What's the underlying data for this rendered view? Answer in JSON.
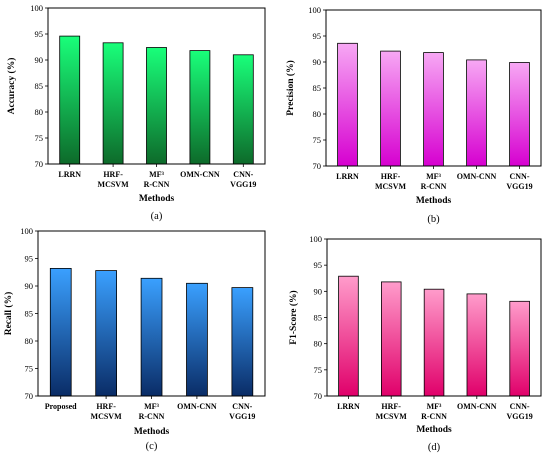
{
  "chart_data": [
    {
      "type": "bar",
      "caption": "(a)",
      "xlabel": "Methods",
      "ylabel": "Accuracy (%)",
      "ylim": [
        70,
        100
      ],
      "yticks": [
        70,
        75,
        80,
        85,
        90,
        95,
        100
      ],
      "categories": [
        [
          "LRRN"
        ],
        [
          "HRF-",
          "MCSVM"
        ],
        [
          "MF³",
          "R-CNN"
        ],
        [
          "OMN-CNN"
        ],
        [
          "CNN-",
          "VGG19"
        ]
      ],
      "values": [
        94.6,
        93.3,
        92.4,
        91.8,
        91.0
      ],
      "colors": {
        "top": "#19ff7a",
        "bottom": "#0d6a2a"
      },
      "grid": false
    },
    {
      "type": "bar",
      "caption": "(b)",
      "xlabel": "Methods",
      "ylabel": "Precision (%)",
      "ylim": [
        70,
        100
      ],
      "yticks": [
        70,
        75,
        80,
        85,
        90,
        95,
        100
      ],
      "categories": [
        [
          "LRRN"
        ],
        [
          "HRF-",
          "MCSVM"
        ],
        [
          "MF³",
          "R-CNN"
        ],
        [
          "OMN-CNN"
        ],
        [
          "CNN-",
          "VGG19"
        ]
      ],
      "values": [
        93.6,
        92.1,
        91.8,
        90.4,
        89.9
      ],
      "colors": {
        "top": "#f7a8f4",
        "bottom": "#d600d0"
      },
      "grid": false
    },
    {
      "type": "bar",
      "caption": "(c)",
      "xlabel": "Methods",
      "ylabel": "Recall (%)",
      "ylim": [
        70,
        100
      ],
      "yticks": [
        70,
        75,
        80,
        85,
        90,
        95,
        100
      ],
      "categories": [
        [
          "Proposed"
        ],
        [
          "HRF-",
          "MCSVM"
        ],
        [
          "MF³",
          "R-CNN"
        ],
        [
          "OMN-CNN"
        ],
        [
          "CNN-",
          "VGG19"
        ]
      ],
      "values": [
        93.2,
        92.8,
        91.4,
        90.5,
        89.7
      ],
      "colors": {
        "top": "#3aa0ff",
        "bottom": "#0a2c66"
      },
      "grid": false
    },
    {
      "type": "bar",
      "caption": "(d)",
      "xlabel": "Methods",
      "ylabel": "F1-Score (%)",
      "ylim": [
        70,
        100
      ],
      "yticks": [
        70,
        75,
        80,
        85,
        90,
        95,
        100
      ],
      "categories": [
        [
          "LRRN"
        ],
        [
          "HRF-",
          "MCSVM"
        ],
        [
          "MF³",
          "R-CNN"
        ],
        [
          "OMN-CNN"
        ],
        [
          "CNN-",
          "VGG19"
        ]
      ],
      "values": [
        92.9,
        91.8,
        90.4,
        89.5,
        88.1
      ],
      "colors": {
        "top": "#ff9ccb",
        "bottom": "#e0006a"
      },
      "grid": false
    }
  ]
}
